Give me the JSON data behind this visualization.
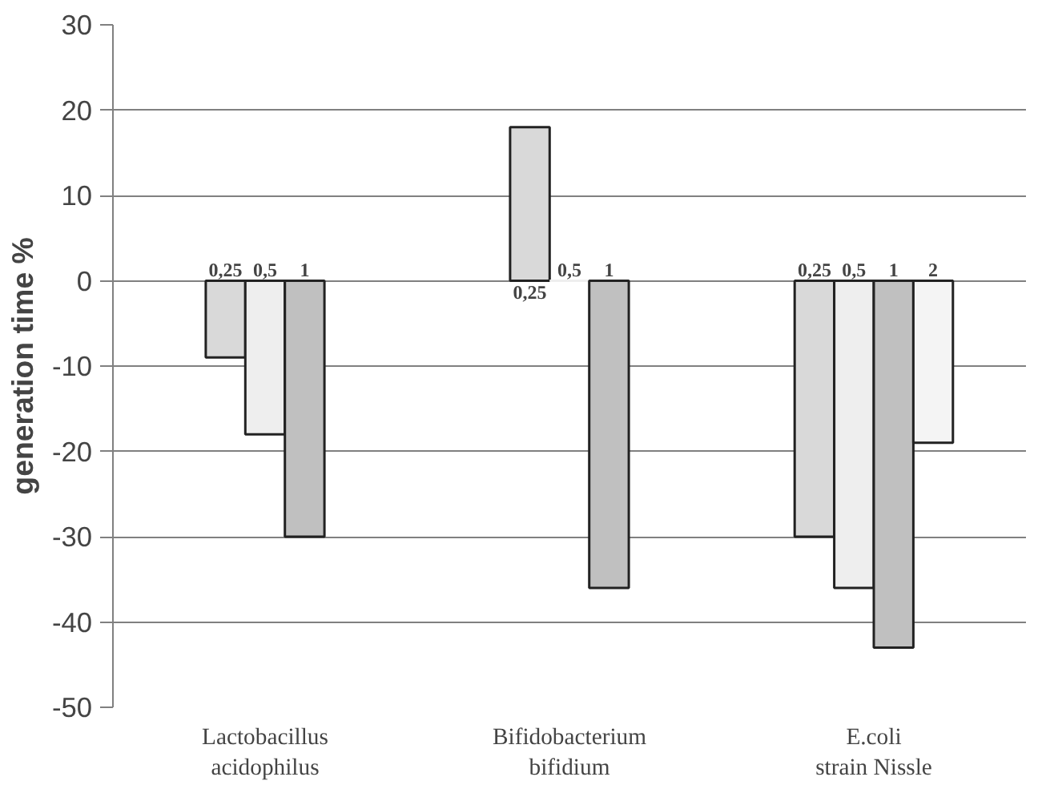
{
  "chart_data": {
    "type": "bar",
    "ylabel": "generation time %",
    "categories": [
      "Lactobacillus\nacidophilus",
      "Bifidobacterium\nbifidium",
      "E.coli\nstrain Nissle"
    ],
    "series": [
      {
        "name": "0,25",
        "color": "#d9d9d9",
        "values": [
          -9,
          18,
          -30
        ]
      },
      {
        "name": "0,5",
        "color": "#eeeeee",
        "values": [
          -18,
          0,
          -36
        ]
      },
      {
        "name": "1",
        "color": "#c0c0c0",
        "values": [
          -30,
          -36,
          -43
        ]
      },
      {
        "name": "2",
        "color": "#f4f4f4",
        "values": [
          null,
          null,
          -19
        ]
      }
    ],
    "ylim": [
      -50,
      30
    ],
    "yticks": [
      -50,
      -40,
      -30,
      -20,
      -10,
      0,
      10,
      20,
      30
    ],
    "grid": "y"
  }
}
